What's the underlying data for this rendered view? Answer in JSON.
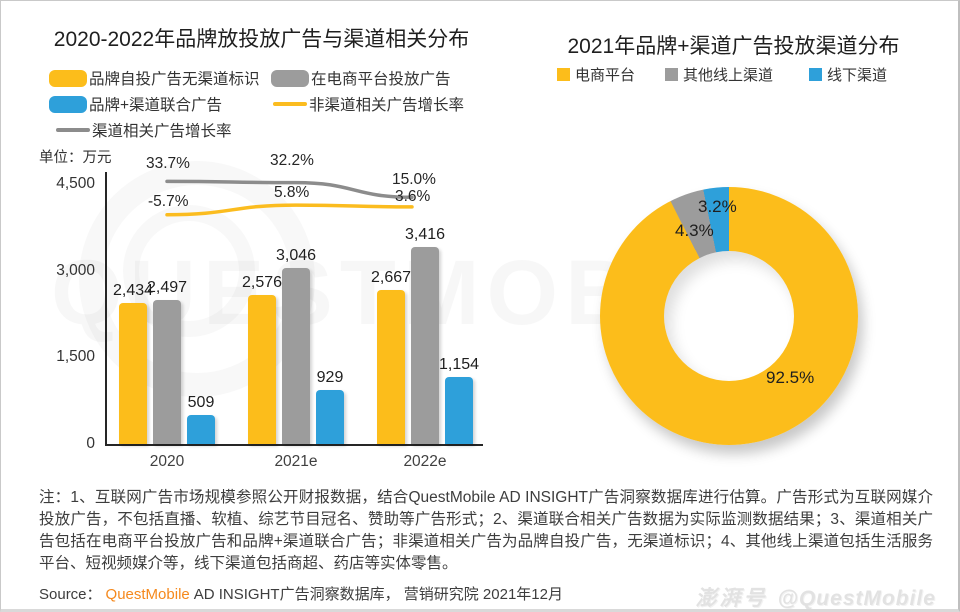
{
  "chart_data": [
    {
      "type": "bar",
      "title": "2020-2022年品牌放投放广告与渠道相关分布",
      "unit_label": "单位：万元",
      "categories": [
        "2020",
        "2021e",
        "2022e"
      ],
      "series": [
        {
          "name": "品牌自投广告无渠道标识",
          "kind": "bar",
          "color": "#FCBD1B",
          "values": [
            2434,
            2576,
            2667
          ],
          "labels": [
            "2,434",
            "2,576",
            "2,667"
          ]
        },
        {
          "name": "在电商平台投放广告",
          "kind": "bar",
          "color": "#9C9C9C",
          "values": [
            2497,
            3046,
            3416
          ],
          "labels": [
            "2,497",
            "3,046",
            "3,416"
          ]
        },
        {
          "name": "品牌+渠道联合广告",
          "kind": "bar",
          "color": "#2EA0DA",
          "values": [
            509,
            929,
            1154
          ],
          "labels": [
            "509",
            "929",
            "1,154"
          ]
        },
        {
          "name": "渠道相关广告增长率",
          "kind": "line",
          "color": "#8C8C8C",
          "values": [
            33.7,
            32.2,
            15.0
          ],
          "labels": [
            "33.7%",
            "32.2%",
            "15.0%"
          ]
        },
        {
          "name": "非渠道相关广告增长率",
          "kind": "line",
          "color": "#FBBC1F",
          "values": [
            -5.7,
            5.8,
            3.6
          ],
          "labels": [
            "-5.7%",
            "5.8%",
            "3.6%"
          ]
        }
      ],
      "legend": [
        {
          "label": "品牌自投广告无渠道标识",
          "type": "bar",
          "color": "#FCBD1B"
        },
        {
          "label": "在电商平台投放广告",
          "type": "bar",
          "color": "#9C9C9C"
        },
        {
          "label": "品牌+渠道联合广告",
          "type": "bar",
          "color": "#2EA0DA"
        },
        {
          "label": "非渠道相关广告增长率",
          "type": "line",
          "color": "#FBBC1F"
        },
        {
          "label": "渠道相关广告增长率",
          "type": "line",
          "color": "#8C8C8C"
        }
      ],
      "ylim": [
        0,
        4500
      ],
      "y_tick_values": [
        0,
        1500,
        3000,
        4500
      ],
      "y_tick_labels": [
        "0",
        "1,500",
        "3,000",
        "4,500"
      ],
      "grid": false,
      "legend_position": "top-left"
    },
    {
      "type": "pie",
      "donut": true,
      "title": "2021年品牌+渠道广告投放渠道分布",
      "slices": [
        {
          "name": "电商平台",
          "value": 92.5,
          "label": "92.5%",
          "color": "#FCBD1B"
        },
        {
          "name": "其他线上渠道",
          "value": 4.3,
          "label": "4.3%",
          "color": "#9C9C9C"
        },
        {
          "name": "线下渠道",
          "value": 3.2,
          "label": "3.2%",
          "color": "#2EA0DA"
        }
      ],
      "legend_position": "top"
    }
  ],
  "footer": {
    "notes": "注：1、互联网广告市场规模参照公开财报数据，结合QuestMobile AD INSIGHT广告洞察数据库进行估算。广告形式为互联网媒介投放广告，不包括直播、软植、综艺节目冠名、赞助等广告形式；2、渠道联合相关广告数据为实际监测数据结果；3、渠道相关广告包括在电商平台投放广告和品牌+渠道联合广告；非渠道相关广告为品牌自投广告，无渠道标识；4、其他线上渠道包括生活服务平台、短视频媒介等，线下渠道包括商超、药店等实体零售。",
    "source_prefix": "Source：",
    "source_brand": "QuestMobile",
    "source_rest": "AD INSIGHT广告洞察数据库， 营销研究院 2021年12月"
  },
  "watermark": {
    "center_text": "QUESTMOBILE",
    "badge": "澎湃号",
    "handle": "@QuestMobile"
  },
  "colors": {
    "yellow": "#FCBD1B",
    "gray": "#9C9C9C",
    "blue": "#2EA0DA",
    "brand_orange": "#F5891D"
  }
}
